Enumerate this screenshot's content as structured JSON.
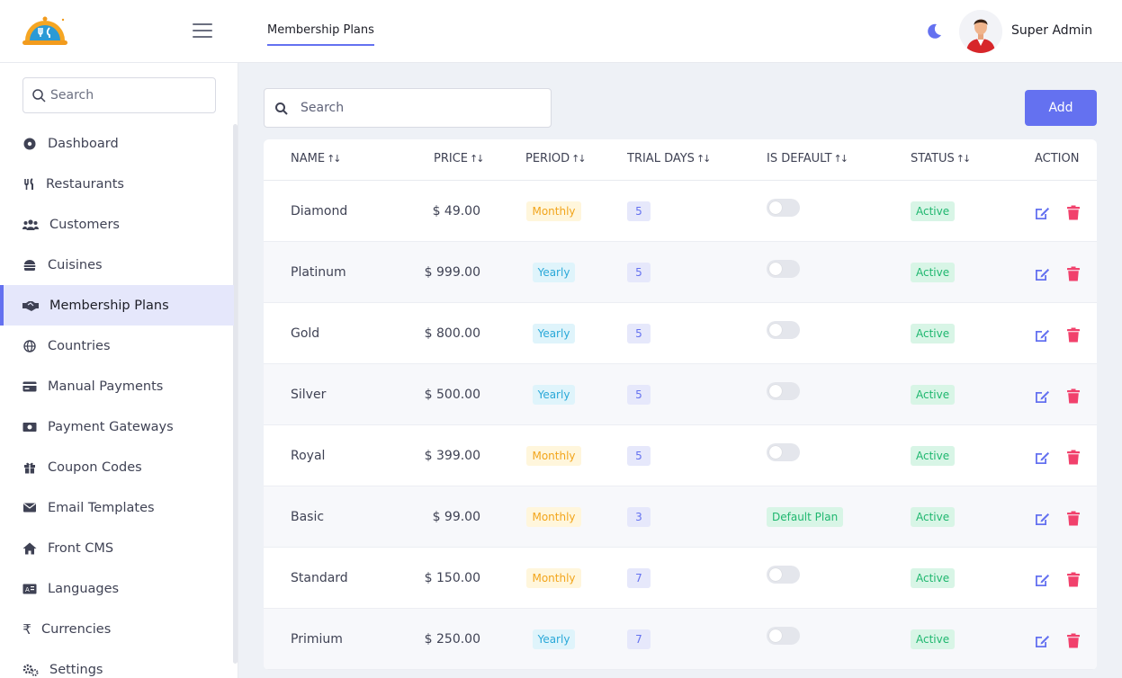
{
  "brand": {
    "logo_icon": "restaurant-cloche-logo-icon",
    "accent": "#6471f0"
  },
  "header": {
    "tab_label": "Membership Plans",
    "theme_icon": "moon-icon",
    "user_name": "Super Admin"
  },
  "sidebar": {
    "search_placeholder": "Search",
    "items": [
      {
        "label": "Dashboard",
        "icon": "dashboard-icon",
        "active": false
      },
      {
        "label": "Restaurants",
        "icon": "utensils-icon",
        "active": false
      },
      {
        "label": "Customers",
        "icon": "users-icon",
        "active": false
      },
      {
        "label": "Cuisines",
        "icon": "burger-icon",
        "active": false
      },
      {
        "label": "Membership Plans",
        "icon": "handshake-icon",
        "active": true
      },
      {
        "label": "Countries",
        "icon": "globe-icon",
        "active": false
      },
      {
        "label": "Manual Payments",
        "icon": "credit-card-icon",
        "active": false
      },
      {
        "label": "Payment Gateways",
        "icon": "money-icon",
        "active": false
      },
      {
        "label": "Coupon Codes",
        "icon": "gift-icon",
        "active": false
      },
      {
        "label": "Email Templates",
        "icon": "envelope-icon",
        "active": false
      },
      {
        "label": "Front CMS",
        "icon": "home-icon",
        "active": false
      },
      {
        "label": "Languages",
        "icon": "language-icon",
        "active": false
      },
      {
        "label": "Currencies",
        "icon": "rupee-icon",
        "active": false
      },
      {
        "label": "Settings",
        "icon": "gears-icon",
        "active": false
      }
    ]
  },
  "main": {
    "search_placeholder": "Search",
    "add_label": "Add",
    "columns": {
      "name": "NAME",
      "price": "PRICE",
      "period": "PERIOD",
      "trial_days": "TRIAL DAYS",
      "is_default": "IS DEFAULT",
      "status": "STATUS",
      "action": "ACTION"
    },
    "sort_glyph": "↑↓",
    "rows": [
      {
        "name": "Diamond",
        "price": "$ 49.00",
        "period": "Monthly",
        "trial_days": "5",
        "is_default": false,
        "default_label": "",
        "status": "Active"
      },
      {
        "name": "Platinum",
        "price": "$ 999.00",
        "period": "Yearly",
        "trial_days": "5",
        "is_default": false,
        "default_label": "",
        "status": "Active"
      },
      {
        "name": "Gold",
        "price": "$ 800.00",
        "period": "Yearly",
        "trial_days": "5",
        "is_default": false,
        "default_label": "",
        "status": "Active"
      },
      {
        "name": "Silver",
        "price": "$ 500.00",
        "period": "Yearly",
        "trial_days": "5",
        "is_default": false,
        "default_label": "",
        "status": "Active"
      },
      {
        "name": "Royal",
        "price": "$ 399.00",
        "period": "Monthly",
        "trial_days": "5",
        "is_default": false,
        "default_label": "",
        "status": "Active"
      },
      {
        "name": "Basic",
        "price": "$ 99.00",
        "period": "Monthly",
        "trial_days": "3",
        "is_default": true,
        "default_label": "Default Plan",
        "status": "Active"
      },
      {
        "name": "Standard",
        "price": "$ 150.00",
        "period": "Monthly",
        "trial_days": "7",
        "is_default": false,
        "default_label": "",
        "status": "Active"
      },
      {
        "name": "Primium",
        "price": "$ 250.00",
        "period": "Yearly",
        "trial_days": "7",
        "is_default": false,
        "default_label": "",
        "status": "Active"
      }
    ],
    "action_icons": [
      "edit-icon",
      "trash-icon"
    ],
    "colors": {
      "edit": "#6471f0",
      "delete": "#f1416c",
      "active": "#1fb76f",
      "monthly": "#f2a51c",
      "yearly": "#2aa8d8"
    }
  }
}
